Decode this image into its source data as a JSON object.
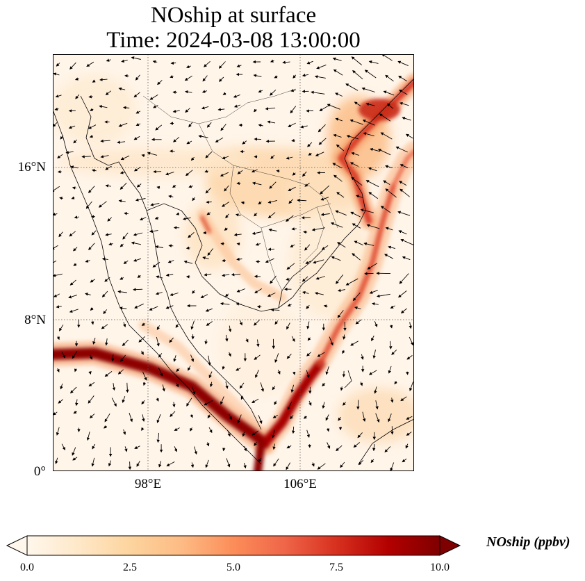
{
  "title": {
    "line1": "NOship at surface",
    "line2": "Time: 2024-03-08 13:00:00"
  },
  "map": {
    "lat_range": [
      0,
      22
    ],
    "lon_range": [
      93,
      112
    ],
    "lat_ticks": [
      {
        "value": 16,
        "label": "16°N"
      },
      {
        "value": 8,
        "label": "8°N"
      },
      {
        "value": 0,
        "label": "0°"
      }
    ],
    "lon_ticks": [
      {
        "value": 98,
        "label": "98°E"
      },
      {
        "value": 106,
        "label": "106°E"
      }
    ],
    "gridlines": "dotted",
    "colormap": "OrRd",
    "vectors": "wind"
  },
  "colorbar": {
    "label": "NOship (ppbv)",
    "min": 0,
    "max": 10,
    "extend": "both",
    "ticks": [
      "0.0",
      "2.5",
      "5.0",
      "7.5",
      "10.0"
    ],
    "colors": [
      "#fff7ec",
      "#fee8c8",
      "#fdd49e",
      "#fdbb84",
      "#fc8d59",
      "#ef6548",
      "#d7301f",
      "#b30000",
      "#7f0000"
    ]
  }
}
